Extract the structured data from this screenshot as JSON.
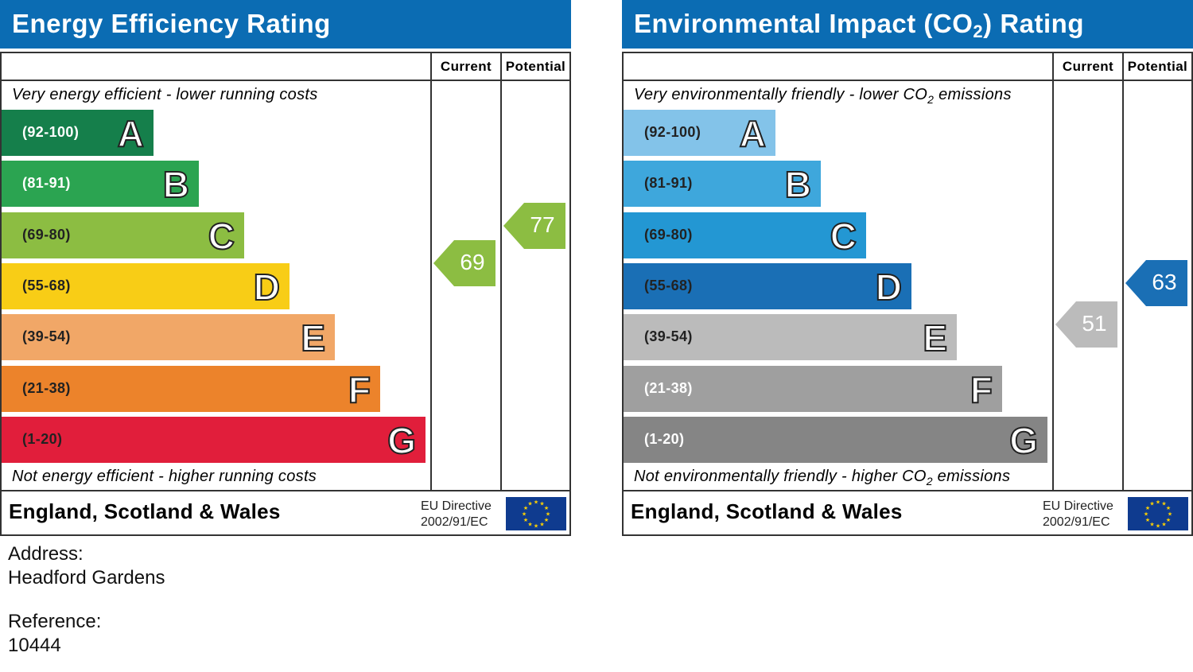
{
  "colors": {
    "title_bar": "#0b6cb3",
    "energy_bands": [
      "#157f4b",
      "#2ba451",
      "#8cbd42",
      "#f8cd16",
      "#f1a767",
      "#ec832b",
      "#e11e3b"
    ],
    "environmental_bands": [
      "#83c3e9",
      "#3ea7dc",
      "#2397d3",
      "#1a6fb5",
      "#bbbbbb",
      "#9f9f9f",
      "#858585"
    ]
  },
  "headers": {
    "current": "Current",
    "potential": "Potential"
  },
  "footer": {
    "country": "England, Scotland & Wales",
    "eu_line1": "EU Directive",
    "eu_line2": "2002/91/EC",
    "flag_icon": "eu-flag-icon"
  },
  "chart_data": [
    {
      "type": "bar",
      "title": "Energy Efficiency Rating",
      "top_text": "Very energy efficient - lower running costs",
      "bottom_text": "Not energy efficient - higher running costs",
      "bands": [
        {
          "range": "(92-100)",
          "letter": "A",
          "min": 92,
          "max": 100,
          "text": "#ffffff"
        },
        {
          "range": "(81-91)",
          "letter": "B",
          "min": 81,
          "max": 91,
          "text": "#ffffff"
        },
        {
          "range": "(69-80)",
          "letter": "C",
          "min": 69,
          "max": 80,
          "text": "#222222"
        },
        {
          "range": "(55-68)",
          "letter": "D",
          "min": 55,
          "max": 68,
          "text": "#222222"
        },
        {
          "range": "(39-54)",
          "letter": "E",
          "min": 39,
          "max": 54,
          "text": "#222222"
        },
        {
          "range": "(21-38)",
          "letter": "F",
          "min": 21,
          "max": 38,
          "text": "#222222"
        },
        {
          "range": "(1-20)",
          "letter": "G",
          "min": 1,
          "max": 20,
          "text": "#222222"
        }
      ],
      "current": {
        "value": 69,
        "band": "C",
        "color": "#8cbd42"
      },
      "potential": {
        "value": 77,
        "band": "C",
        "color": "#8cbd42"
      }
    },
    {
      "type": "bar",
      "title_prefix": "Environmental Impact (CO",
      "title_sub": "2",
      "title_suffix": ") Rating",
      "top_text_prefix": "Very environmentally friendly - lower CO",
      "top_text_sub": "2",
      "top_text_suffix": " emissions",
      "bottom_text_prefix": "Not environmentally friendly - higher CO",
      "bottom_text_sub": "2",
      "bottom_text_suffix": " emissions",
      "bands": [
        {
          "range": "(92-100)",
          "letter": "A",
          "min": 92,
          "max": 100,
          "text": "#222222"
        },
        {
          "range": "(81-91)",
          "letter": "B",
          "min": 81,
          "max": 91,
          "text": "#222222"
        },
        {
          "range": "(69-80)",
          "letter": "C",
          "min": 69,
          "max": 80,
          "text": "#222222"
        },
        {
          "range": "(55-68)",
          "letter": "D",
          "min": 55,
          "max": 68,
          "text": "#222222"
        },
        {
          "range": "(39-54)",
          "letter": "E",
          "min": 39,
          "max": 54,
          "text": "#222222"
        },
        {
          "range": "(21-38)",
          "letter": "F",
          "min": 21,
          "max": 38,
          "text": "#ffffff"
        },
        {
          "range": "(1-20)",
          "letter": "G",
          "min": 1,
          "max": 20,
          "text": "#ffffff"
        }
      ],
      "current": {
        "value": 51,
        "band": "E",
        "color": "#bbbbbb"
      },
      "potential": {
        "value": 63,
        "band": "D",
        "color": "#1a6fb5"
      }
    }
  ],
  "info": {
    "address_label": "Address:",
    "address_value": "Headford Gardens",
    "reference_label": "Reference:",
    "reference_value": "10444"
  }
}
